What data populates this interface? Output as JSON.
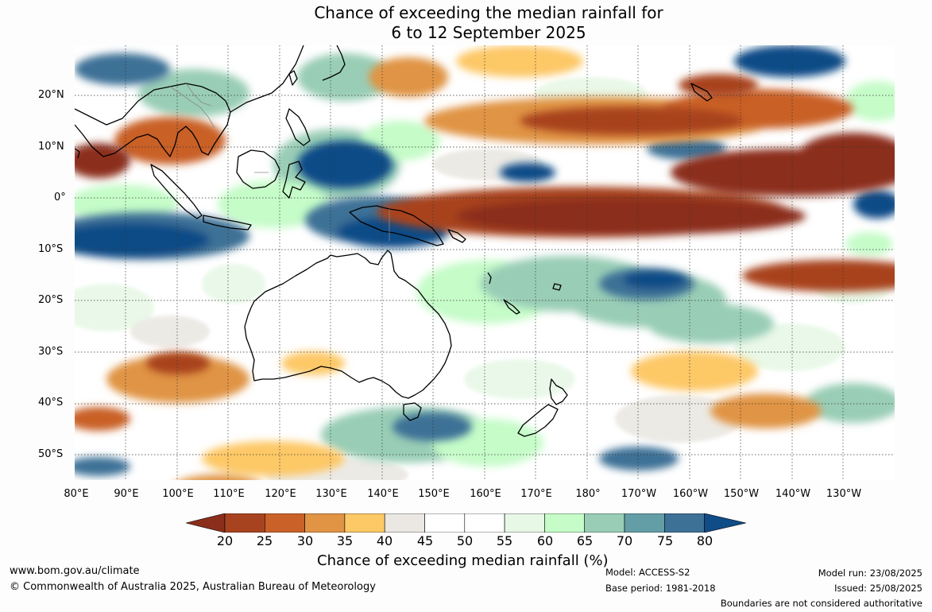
{
  "title": {
    "line1": "Chance of exceeding the median rainfall for",
    "line2": "6 to 12 September 2025"
  },
  "axes": {
    "lat_labels": [
      "20°N",
      "10°N",
      "0°",
      "10°S",
      "20°S",
      "30°S",
      "40°S",
      "50°S"
    ],
    "lon_labels": [
      "80°E",
      "90°E",
      "100°E",
      "110°E",
      "120°E",
      "130°E",
      "140°E",
      "150°E",
      "160°E",
      "170°E",
      "180°",
      "170°W",
      "160°W",
      "150°W",
      "140°W",
      "130°W"
    ]
  },
  "colorbar": {
    "ticks": [
      "20",
      "25",
      "30",
      "35",
      "40",
      "45",
      "50",
      "55",
      "60",
      "65",
      "70",
      "75",
      "80"
    ],
    "colors": [
      "#8c2e1c",
      "#a8431f",
      "#c96128",
      "#e09444",
      "#fdc866",
      "#ebe8e3",
      "#ffffff",
      "#ffffff",
      "#e7f8e6",
      "#c5fcc8",
      "#99cdb6",
      "#639ea6",
      "#3d7196",
      "#104c87"
    ],
    "title": "Chance of exceeding median rainfall (%)"
  },
  "footer": {
    "website": "www.bom.gov.au/climate",
    "copyright": "© Commonwealth of Australia 2025, Australian Bureau of Meteorology",
    "model": "Model: ACCESS-S2",
    "base_period": "Base period: 1981-2018",
    "model_run": "Model run: 23/08/2025",
    "issued": "Issued: 25/08/2025",
    "disclaimer": "Boundaries are not considered authoritative"
  }
}
